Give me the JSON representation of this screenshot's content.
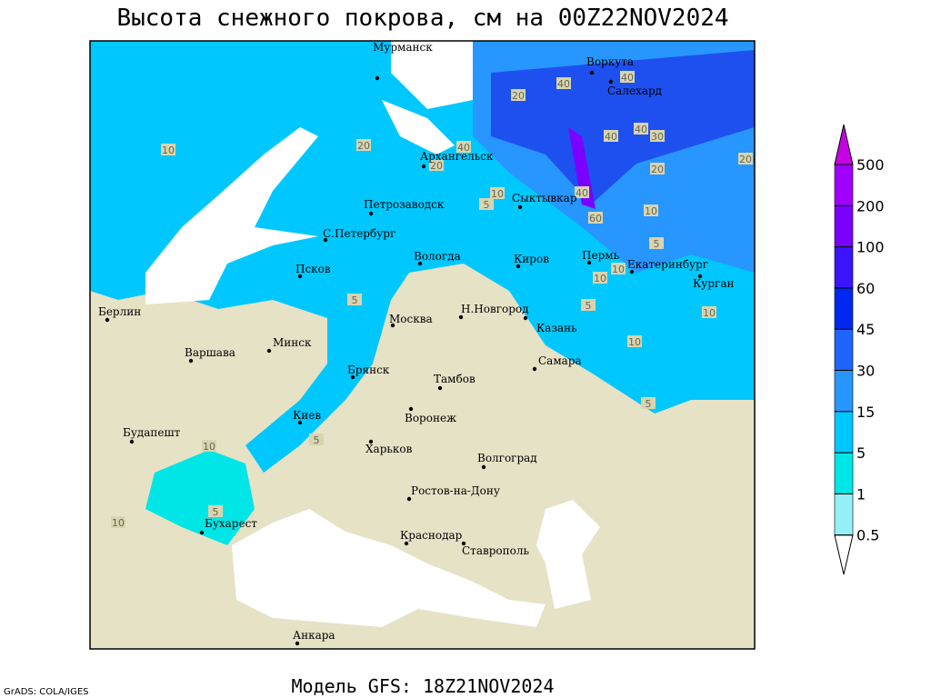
{
  "title": "Высота снежного покрова, см на 00Z22NOV2024",
  "footer": "Модель GFS: 18Z21NOV2024",
  "credit": "GrADS: COLA/IGES",
  "cities": [
    "Мурманск",
    "Воркута",
    "Салехард",
    "Архангельск",
    "Петрозаводск",
    "Сыктывкар",
    "С.Петербург",
    "Вологда",
    "Киров",
    "Пермь",
    "Екатеринбург",
    "Курган",
    "Псков",
    "Берлин",
    "Москва",
    "Н.Новгород",
    "Казань",
    "Минск",
    "Варшава",
    "Самара",
    "Брянск",
    "Тамбов",
    "Киев",
    "Воронеж",
    "Будапешт",
    "Харьков",
    "Волгоград",
    "Ростов-на-Дону",
    "Бухарест",
    "Краснодар",
    "Ставрополь",
    "Анкара"
  ],
  "contour_labels": [
    20,
    40,
    40,
    20,
    40,
    20,
    40,
    40,
    30,
    20,
    20,
    10,
    5,
    40,
    60,
    10,
    5,
    10,
    10,
    5,
    5,
    10,
    10,
    5,
    5,
    10,
    5,
    10,
    10
  ],
  "legend": {
    "levels": [
      0.5,
      1,
      5,
      15,
      30,
      45,
      60,
      100,
      200,
      500
    ],
    "colors": [
      "#ffffff",
      "#96f0f8",
      "#00e6e6",
      "#00c8ff",
      "#2896ff",
      "#1e64ff",
      "#0028f0",
      "#3c14ff",
      "#7a00ff",
      "#a000ff",
      "#c800e6"
    ]
  }
}
